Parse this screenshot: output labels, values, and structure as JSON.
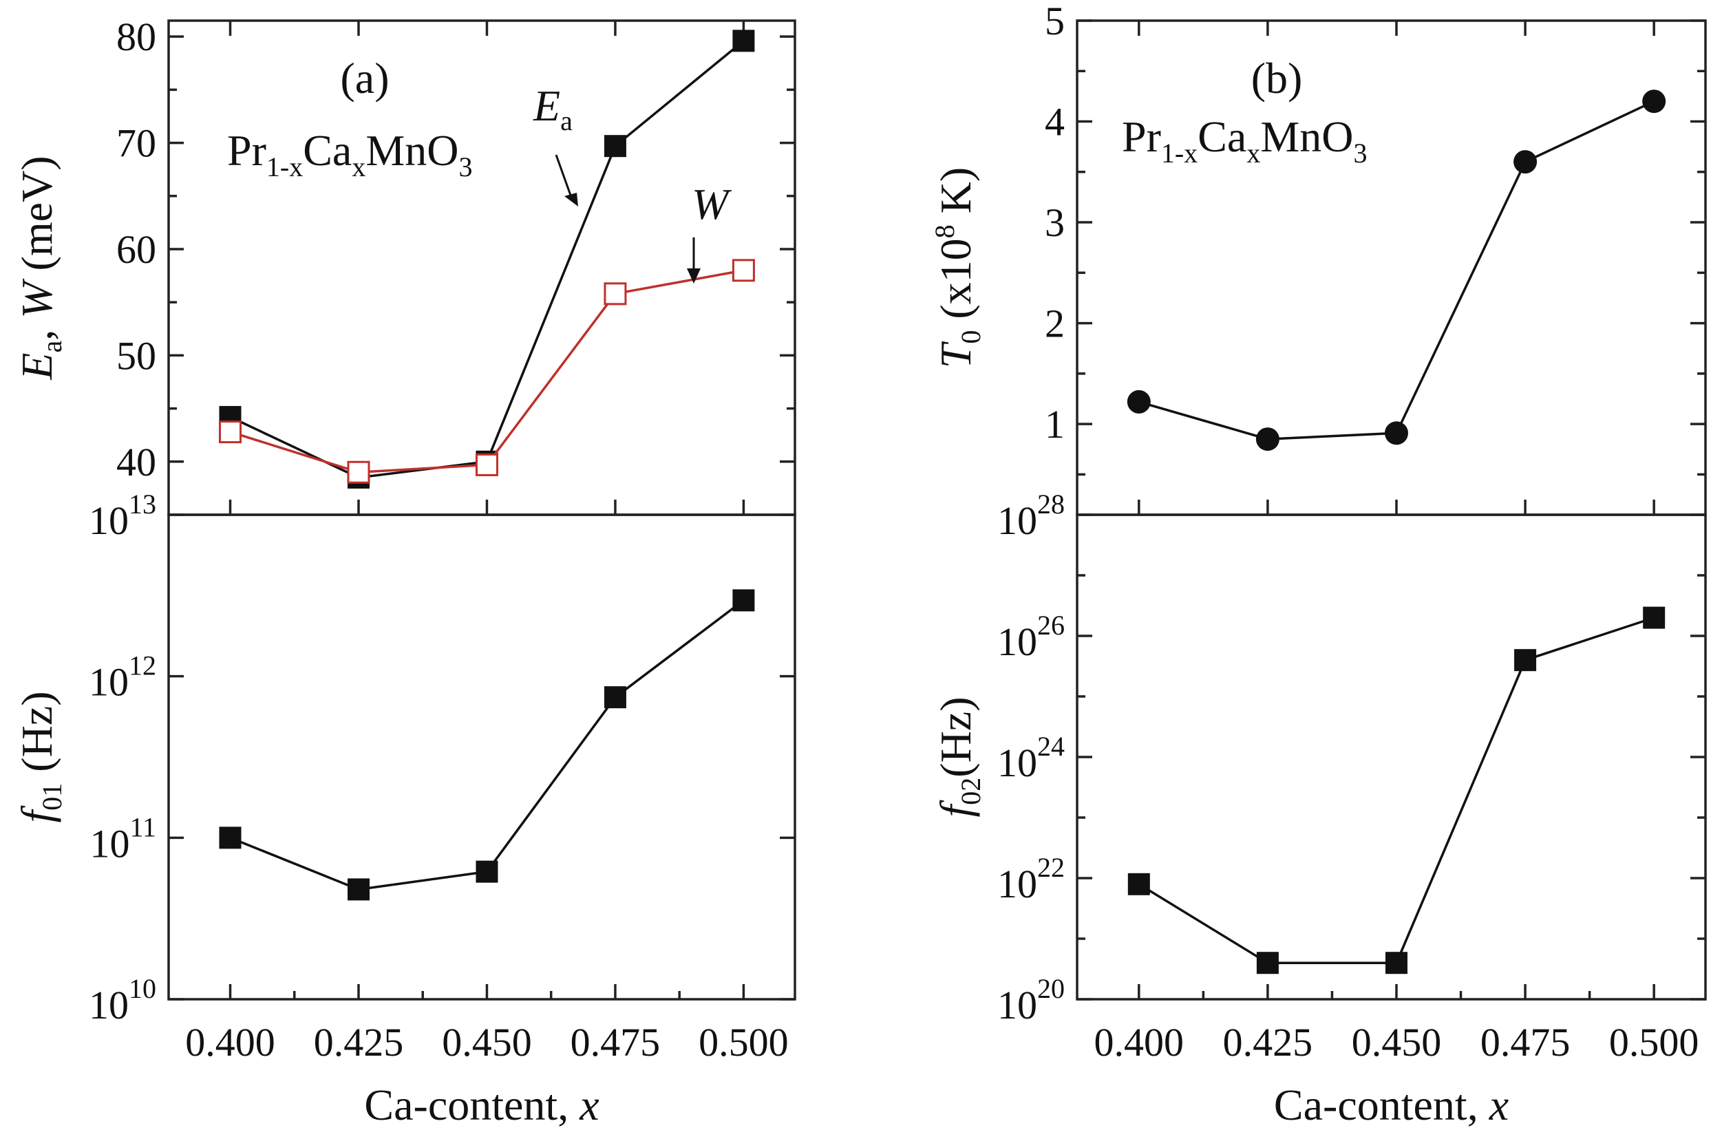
{
  "colors": {
    "black_series": "#111111",
    "red_series": "#c0302b",
    "axes": "#222222"
  },
  "chart_data": [
    {
      "panel": "(a)",
      "type": "line",
      "annotation": {
        "formula_base": "Pr",
        "formula_sub1": "1-x",
        "formula_mid": "Ca",
        "formula_sub2": "x",
        "formula_tail": "MnO",
        "formula_sub3": "3"
      },
      "x": [
        0.4,
        0.425,
        0.45,
        0.475,
        0.5
      ],
      "xlim": [
        0.388,
        0.51
      ],
      "xticklabels": [
        "0.400",
        "0.425",
        "0.450",
        "0.475",
        "0.500"
      ],
      "xlabel": {
        "text": "Ca-content, ",
        "var": "x"
      },
      "top": {
        "ylabel": {
          "v1": "E",
          "s1": "a",
          "sep": ", ",
          "v2": "W",
          "unit": " (meV)"
        },
        "ylim": [
          35,
          81.5
        ],
        "yticks": [
          40,
          50,
          60,
          70,
          80
        ],
        "yticklabels": [
          "40",
          "50",
          "60",
          "70",
          "80"
        ],
        "series": [
          {
            "name": "E_a",
            "label_v": "E",
            "label_s": "a",
            "marker": "filled-square",
            "color": "#111111",
            "values": [
              44.2,
              38.5,
              40.0,
              69.7,
              79.6
            ]
          },
          {
            "name": "W",
            "label_v": "W",
            "marker": "open-square",
            "color": "#c0302b",
            "values": [
              42.8,
              39.0,
              39.7,
              55.8,
              58.0
            ]
          }
        ]
      },
      "bottom": {
        "scale": "log",
        "ylabel": {
          "v": "f",
          "s": "01",
          "unit": " (Hz)"
        },
        "ylim_exp": [
          10,
          13
        ],
        "ytick_base": "10",
        "ytick_exps": [
          "10",
          "11",
          "12",
          "13"
        ],
        "series": [
          {
            "name": "f01",
            "marker": "filled-square",
            "color": "#111111",
            "values_log10": [
              11.0,
              10.68,
              10.79,
              11.87,
              12.47
            ]
          }
        ]
      }
    },
    {
      "panel": "(b)",
      "type": "line",
      "annotation": {
        "formula_base": "Pr",
        "formula_sub1": "1-x",
        "formula_mid": "Ca",
        "formula_sub2": "x",
        "formula_tail": "MnO",
        "formula_sub3": "3"
      },
      "x": [
        0.4,
        0.425,
        0.45,
        0.475,
        0.5
      ],
      "xlim": [
        0.388,
        0.51
      ],
      "xticklabels": [
        "0.400",
        "0.425",
        "0.450",
        "0.475",
        "0.500"
      ],
      "xlabel": {
        "text": "Ca-content, ",
        "var": "x"
      },
      "top": {
        "ylabel": {
          "v": "T",
          "s": "0",
          "u1": " (x10",
          "sup": "8",
          "u2": " K)"
        },
        "ylim": [
          0.1,
          5
        ],
        "yticks": [
          1,
          2,
          3,
          4,
          5
        ],
        "yticklabels": [
          "1",
          "2",
          "3",
          "4",
          "5"
        ],
        "series": [
          {
            "name": "T0",
            "marker": "filled-circle",
            "color": "#111111",
            "values": [
              1.22,
              0.85,
              0.91,
              3.6,
              4.2
            ]
          }
        ]
      },
      "bottom": {
        "scale": "log",
        "ylabel": {
          "v": "f",
          "s": "02",
          "unit": "(Hz)"
        },
        "ylim_exp": [
          20,
          28
        ],
        "ytick_base": "10",
        "ytick_exps": [
          "20",
          "22",
          "24",
          "26",
          "28"
        ],
        "series": [
          {
            "name": "f02",
            "marker": "filled-square",
            "color": "#111111",
            "values_log10": [
              21.9,
              20.6,
              20.6,
              25.6,
              26.3
            ]
          }
        ]
      }
    }
  ]
}
